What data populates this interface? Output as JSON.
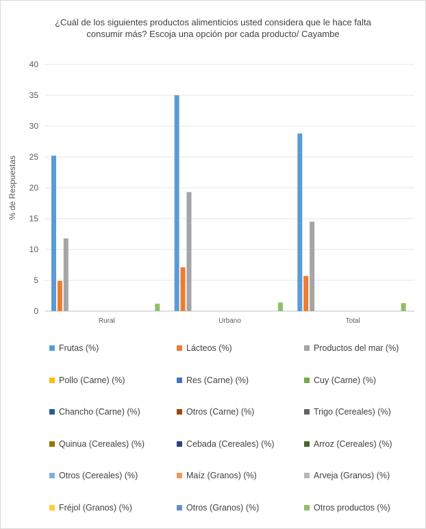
{
  "chart_data": {
    "type": "bar",
    "title_lines": [
      "¿Cuál de los siguientes productos alimenticios usted considera que le hace falta",
      "consumir más? Escoja una opción por cada producto/ Cayambe"
    ],
    "ylabel": "% de Respuestas",
    "xlabel": "",
    "ylim": [
      0,
      40
    ],
    "yticks": [
      0,
      5,
      10,
      15,
      20,
      25,
      30,
      35,
      40
    ],
    "grid": true,
    "legend_position": "bottom",
    "categories": [
      "Rural",
      "Urbano",
      "Total"
    ],
    "series": [
      {
        "name": "Frutas (%)",
        "color": "#5b9bd5",
        "values": [
          25.2,
          35.0,
          28.8
        ]
      },
      {
        "name": "Lácteos (%)",
        "color": "#ed7d31",
        "values": [
          4.9,
          7.1,
          5.7
        ]
      },
      {
        "name": "Productos del mar (%)",
        "color": "#a5a5a5",
        "values": [
          11.8,
          19.3,
          14.5
        ]
      },
      {
        "name": "Pollo (Carne) (%)",
        "color": "#ffc000",
        "values": [
          0,
          0,
          0
        ]
      },
      {
        "name": "Res (Carne) (%)",
        "color": "#4472c4",
        "values": [
          0,
          0,
          0
        ]
      },
      {
        "name": "Cuy (Carne) (%)",
        "color": "#70ad47",
        "values": [
          0,
          0,
          0
        ]
      },
      {
        "name": "Chancho (Carne) (%)",
        "color": "#255e91",
        "values": [
          0,
          0,
          0
        ]
      },
      {
        "name": "Otros (Carne) (%)",
        "color": "#9e480e",
        "values": [
          0,
          0,
          0
        ]
      },
      {
        "name": "Trigo (Cereales) (%)",
        "color": "#636363",
        "values": [
          0,
          0,
          0
        ]
      },
      {
        "name": "Quinua (Cereales) (%)",
        "color": "#997300",
        "values": [
          0,
          0,
          0
        ]
      },
      {
        "name": "Cebada (Cereales) (%)",
        "color": "#264478",
        "values": [
          0,
          0,
          0
        ]
      },
      {
        "name": "Arroz (Cereales) (%)",
        "color": "#43682b",
        "values": [
          0,
          0,
          0
        ]
      },
      {
        "name": "Otros (Cereales) (%)",
        "color": "#7cafdd",
        "values": [
          0,
          0,
          0
        ]
      },
      {
        "name": "Maíz (Granos) (%)",
        "color": "#f1975a",
        "values": [
          0,
          0,
          0
        ]
      },
      {
        "name": "Arveja (Granos) (%)",
        "color": "#b7b7b7",
        "values": [
          0,
          0,
          0
        ]
      },
      {
        "name": "Fréjol (Granos) (%)",
        "color": "#ffcd33",
        "values": [
          0,
          0,
          0
        ]
      },
      {
        "name": "Otros (Granos) (%)",
        "color": "#698ed0",
        "values": [
          0,
          0,
          0
        ]
      },
      {
        "name": "Otros productos (%)",
        "color": "#8cc168",
        "values": [
          1.2,
          1.4,
          1.3
        ]
      }
    ]
  }
}
